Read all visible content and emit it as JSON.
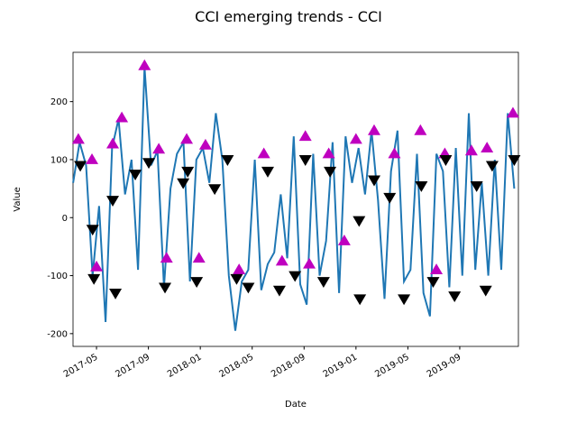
{
  "chart_data": {
    "type": "line",
    "title": "CCI emerging trends - CCI",
    "x_label": "Date",
    "y_label": "Value",
    "xlim": [
      2.19,
      36.52
    ],
    "ylim": [
      -222,
      285
    ],
    "xticks": [
      {
        "value": 4,
        "label": "2017-05"
      },
      {
        "value": 8,
        "label": "2017-09"
      },
      {
        "value": 12,
        "label": "2018-01"
      },
      {
        "value": 16,
        "label": "2018-05"
      },
      {
        "value": 20,
        "label": "2018-09"
      },
      {
        "value": 24,
        "label": "2019-01"
      },
      {
        "value": 28,
        "label": "2019-05"
      },
      {
        "value": 32,
        "label": "2019-09"
      }
    ],
    "yticks": [
      -200,
      -100,
      0,
      100,
      200
    ],
    "series": [
      {
        "color": "#1f77b4",
        "marker": "none",
        "x": [
          2.2,
          2.7,
          3.2,
          3.7,
          4.2,
          4.7,
          5.2,
          5.7,
          6.2,
          6.7,
          7.2,
          7.7,
          8.2,
          8.7,
          9.2,
          9.7,
          10.2,
          10.7,
          11.2,
          11.7,
          12.2,
          12.7,
          13.2,
          13.7,
          14.2,
          14.7,
          15.2,
          15.7,
          16.2,
          16.7,
          17.2,
          17.7,
          18.2,
          18.7,
          19.2,
          19.7,
          20.2,
          20.7,
          21.2,
          21.7,
          22.2,
          22.7,
          23.2,
          23.7,
          24.2,
          24.7,
          25.2,
          25.7,
          26.2,
          26.7,
          27.2,
          27.7,
          28.2,
          28.7,
          29.2,
          29.7,
          30.2,
          30.7,
          31.2,
          31.7,
          32.2,
          32.7,
          33.2,
          33.7,
          34.2,
          34.7,
          35.2,
          35.7,
          36.2
        ],
        "values": [
          60,
          130,
          90,
          -100,
          20,
          -180,
          120,
          170,
          40,
          100,
          -90,
          260,
          90,
          115,
          -120,
          50,
          110,
          130,
          -110,
          100,
          120,
          60,
          180,
          100,
          -100,
          -195,
          -110,
          -90,
          100,
          -125,
          -80,
          -60,
          40,
          -70,
          140,
          -115,
          -150,
          110,
          -100,
          -40,
          130,
          -130,
          140,
          60,
          120,
          40,
          150,
          30,
          -140,
          80,
          150,
          -110,
          -90,
          110,
          -130,
          -170,
          110,
          80,
          -120,
          120,
          -100,
          180,
          -90,
          60,
          -100,
          100,
          -90,
          180,
          50
        ]
      },
      {
        "color": "#bf00bf",
        "marker": "up",
        "x": [
          2.6,
          3.65,
          4.0,
          5.25,
          5.95,
          7.7,
          8.8,
          9.4,
          10.95,
          11.9,
          12.4,
          14.99,
          16.9,
          18.3,
          20.1,
          20.4,
          21.9,
          23.1,
          24.0,
          25.4,
          26.96,
          28.97,
          30.2,
          30.85,
          32.9,
          34.1,
          36.1
        ],
        "values": [
          135,
          100,
          -85,
          127,
          172,
          262,
          118,
          -70,
          135,
          -70,
          125,
          -90,
          110,
          -75,
          140,
          -80,
          110,
          -40,
          135,
          150,
          110,
          150,
          -90,
          110,
          115,
          120,
          180
        ]
      },
      {
        "color": "#000000",
        "marker": "down",
        "x": [
          2.75,
          3.7,
          3.8,
          5.25,
          5.46,
          6.99,
          8.03,
          9.28,
          10.68,
          11.03,
          11.72,
          13.11,
          14.1,
          14.8,
          15.7,
          17.2,
          18.1,
          19.3,
          20.1,
          21.5,
          22.0,
          24.24,
          24.3,
          25.4,
          26.6,
          27.7,
          29.04,
          29.95,
          30.92,
          31.6,
          33.3,
          34.0,
          34.5,
          36.2
        ],
        "values": [
          90,
          -20,
          -105,
          30,
          -130,
          75,
          95,
          -120,
          60,
          80,
          -110,
          50,
          100,
          -105,
          -120,
          80,
          -125,
          -100,
          100,
          -110,
          80,
          -5,
          -140,
          65,
          35,
          -140,
          55,
          -110,
          100,
          -135,
          55,
          -125,
          90,
          100
        ]
      }
    ]
  }
}
